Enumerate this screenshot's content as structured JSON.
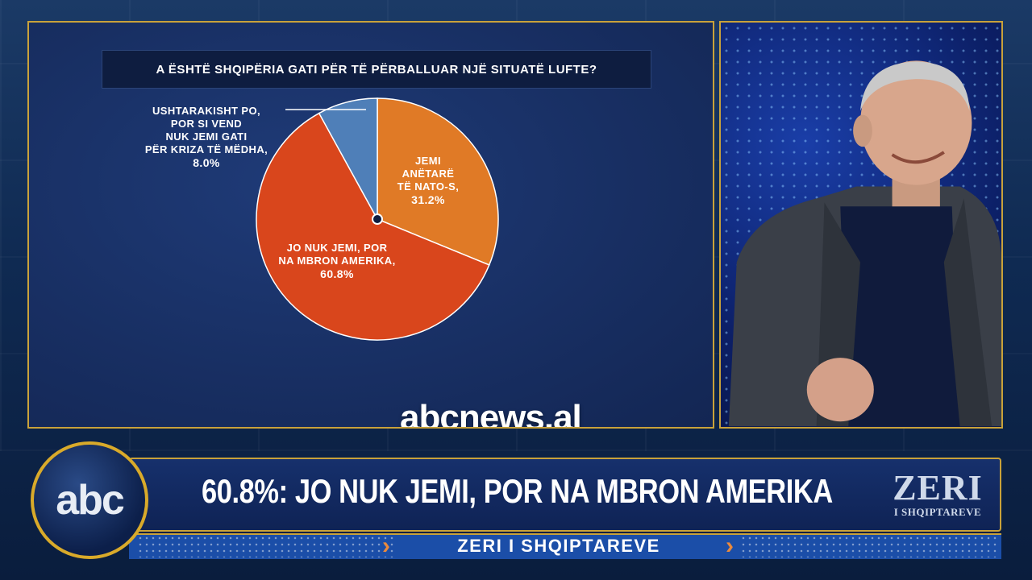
{
  "chart": {
    "question": "A ËSHTË SHQIPËRIA GATI PËR TË PËRBALLUAR NJË SITUATË LUFTE?",
    "slices": [
      {
        "label_lines": [
          "JEMI",
          "ANËTARË",
          "TË NATO-S,"
        ],
        "pct_text": "31.2%",
        "value": 31.2,
        "color": "#e07a26"
      },
      {
        "label_lines": [
          "JO NUK JEMI, POR",
          "NA MBRON AMERIKA,"
        ],
        "pct_text": "60.8%",
        "value": 60.8,
        "color": "#d9461c"
      },
      {
        "label_lines": [
          "USHTARAKISHT PO,",
          "POR SI VEND",
          "NUK JEMI GATI",
          "PËR KRIZA TË MËDHA,"
        ],
        "pct_text": "8.0%",
        "value": 8.0,
        "color": "#4f7fb8"
      }
    ]
  },
  "watermark": "abcnews.al",
  "lower_third": {
    "channel_logo": "abc",
    "headline": "60.8%: JO NUK JEMI, POR NA MBRON AMERIKA",
    "show_logo_big": "ZERI",
    "show_logo_small": "I SHQIPTAREVE",
    "ticker": "ZERI I SHQIPTAREVE"
  },
  "colors": {
    "border_gold": "#c9a23a",
    "panel_blue": "#182f63"
  }
}
